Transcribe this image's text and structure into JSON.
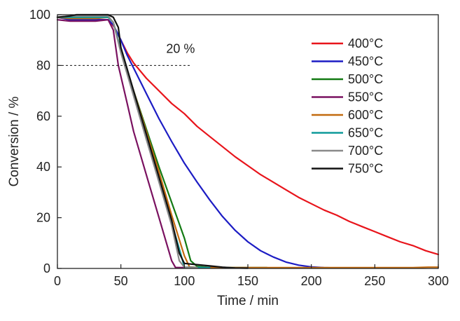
{
  "chart_data": {
    "type": "line",
    "title": "",
    "xlabel": "Time / min",
    "ylabel": "Conversion / %",
    "xlim": [
      0,
      300
    ],
    "ylim": [
      0,
      100
    ],
    "xticks": [
      0,
      50,
      100,
      150,
      200,
      250,
      300
    ],
    "yticks": [
      0,
      20,
      40,
      60,
      80,
      100
    ],
    "grid": false,
    "legend_position": "top-right",
    "reference_line": {
      "y": 80,
      "x_from": 0,
      "x_to": 105,
      "style": "dashed"
    },
    "annotations": [
      {
        "text": "20 %",
        "x": 97,
        "y": 85
      }
    ],
    "series": [
      {
        "name": "400°C",
        "color": "#e8141b",
        "x": [
          0,
          10,
          20,
          30,
          40,
          45,
          50,
          55,
          60,
          70,
          80,
          90,
          100,
          110,
          120,
          130,
          140,
          150,
          160,
          170,
          180,
          190,
          200,
          210,
          220,
          230,
          240,
          250,
          260,
          270,
          280,
          290,
          300
        ],
        "y": [
          99,
          98,
          98,
          98,
          98,
          95,
          90,
          85,
          81,
          75,
          70,
          65,
          61,
          56,
          52,
          48,
          44,
          40.5,
          37,
          34,
          31,
          28,
          25.5,
          23,
          21,
          18.5,
          16.5,
          14.5,
          12.5,
          10.5,
          9,
          7,
          5.5
        ]
      },
      {
        "name": "450°C",
        "color": "#1c1cc4",
        "x": [
          0,
          10,
          20,
          30,
          40,
          44,
          50,
          55,
          60,
          70,
          80,
          90,
          100,
          110,
          120,
          130,
          140,
          150,
          160,
          170,
          180,
          190,
          200,
          210,
          220
        ],
        "y": [
          99,
          98,
          98,
          98,
          98,
          96,
          90,
          84,
          79,
          69,
          59,
          50,
          41.5,
          34,
          27,
          20.5,
          15,
          10.5,
          7,
          4.5,
          2.5,
          1.3,
          0.6,
          0.3,
          0.2
        ]
      },
      {
        "name": "500°C",
        "color": "#137a13",
        "x": [
          0,
          10,
          20,
          30,
          40,
          44,
          50,
          60,
          70,
          80,
          90,
          100,
          105,
          110,
          120,
          130,
          140,
          150,
          160,
          165
        ],
        "y": [
          99,
          99,
          99,
          99,
          99,
          97,
          86,
          70,
          55,
          40,
          26,
          12,
          3,
          0.8,
          0.4,
          0.3,
          0.3,
          0.3,
          0.3,
          0.3
        ]
      },
      {
        "name": "550°C",
        "color": "#7a1160",
        "x": [
          0,
          10,
          20,
          30,
          40,
          44,
          48,
          55,
          60,
          70,
          80,
          90,
          93,
          100,
          110,
          120,
          130
        ],
        "y": [
          98,
          97.5,
          97.5,
          97.5,
          98,
          94,
          80,
          65,
          54,
          37,
          20,
          3,
          0.4,
          0.3,
          0.3,
          0.3,
          0.3
        ]
      },
      {
        "name": "600°C",
        "color": "#c26a0e",
        "x": [
          0,
          10,
          20,
          30,
          40,
          44,
          50,
          60,
          70,
          80,
          90,
          100,
          104,
          110,
          120,
          150,
          180,
          210,
          240,
          252,
          265,
          280,
          292,
          300
        ],
        "y": [
          99,
          98.5,
          98.5,
          98.5,
          99,
          97,
          86,
          70,
          54,
          38,
          21,
          5,
          0.6,
          0.4,
          0.3,
          0.3,
          0.3,
          0.3,
          0.3,
          0.3,
          0.3,
          0.3,
          0.5,
          0.5
        ]
      },
      {
        "name": "650°C",
        "color": "#0f9a9a",
        "x": [
          0,
          10,
          20,
          30,
          40,
          44,
          50,
          60,
          70,
          80,
          90,
          97,
          100,
          110,
          120
        ],
        "y": [
          99,
          99,
          99,
          99,
          99,
          97,
          86,
          69,
          52,
          35,
          18,
          6,
          0.5,
          0.4,
          0.3
        ]
      },
      {
        "name": "700°C",
        "color": "#8a8a8a",
        "x": [
          0,
          10,
          20,
          30,
          40,
          44,
          50,
          60,
          70,
          80,
          90,
          96,
          100,
          110
        ],
        "y": [
          99,
          99.5,
          99.5,
          99.5,
          99.5,
          97,
          85,
          68,
          51,
          34,
          17,
          3,
          0.5,
          0.4
        ]
      },
      {
        "name": "750°C",
        "color": "#111111",
        "x": [
          0,
          10,
          15,
          20,
          30,
          40,
          44,
          48,
          50,
          60,
          70,
          80,
          90,
          96,
          100,
          110,
          120,
          130,
          140,
          150
        ],
        "y": [
          99,
          99.5,
          100,
          100,
          100,
          100,
          99,
          95,
          87,
          70,
          53,
          36,
          19,
          6,
          2,
          1.5,
          1,
          0.5,
          0.2,
          0.1
        ]
      }
    ]
  }
}
